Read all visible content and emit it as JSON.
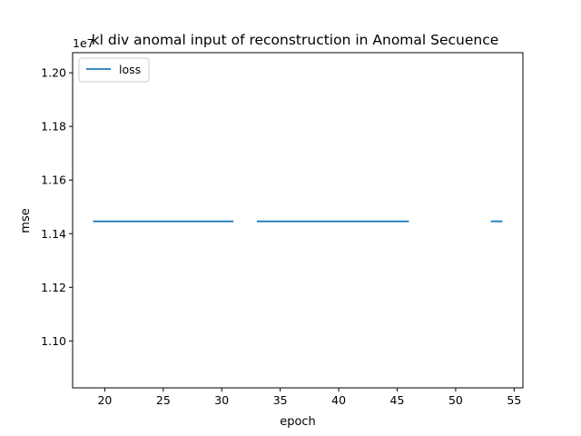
{
  "chart_data": {
    "type": "line",
    "title": "kl div anomal input  of reconstruction in Anomal Secuence",
    "xlabel": "epoch",
    "ylabel": "mse",
    "y_offset_label": "1e7",
    "xlim": [
      17.25,
      55.75
    ],
    "ylim": [
      1.0825,
      1.2075
    ],
    "x_ticks": [
      20,
      25,
      30,
      35,
      40,
      45,
      50,
      55
    ],
    "y_ticks": [
      1.1,
      1.12,
      1.14,
      1.16,
      1.18,
      1.2
    ],
    "x_tick_labels": [
      "20",
      "25",
      "30",
      "35",
      "40",
      "45",
      "50",
      "55"
    ],
    "y_tick_labels": [
      "1.10",
      "1.12",
      "1.14",
      "1.16",
      "1.18",
      "1.20"
    ],
    "legend_position": "top-left",
    "series": [
      {
        "name": "loss",
        "color": "#1f77b4",
        "segments": [
          {
            "x": [
              19,
              31
            ],
            "y": [
              1.1446,
              1.1446
            ]
          },
          {
            "x": [
              33,
              46
            ],
            "y": [
              1.1446,
              1.1446
            ]
          },
          {
            "x": [
              53,
              54
            ],
            "y": [
              1.1446,
              1.1446
            ]
          }
        ]
      }
    ],
    "grid": false
  }
}
